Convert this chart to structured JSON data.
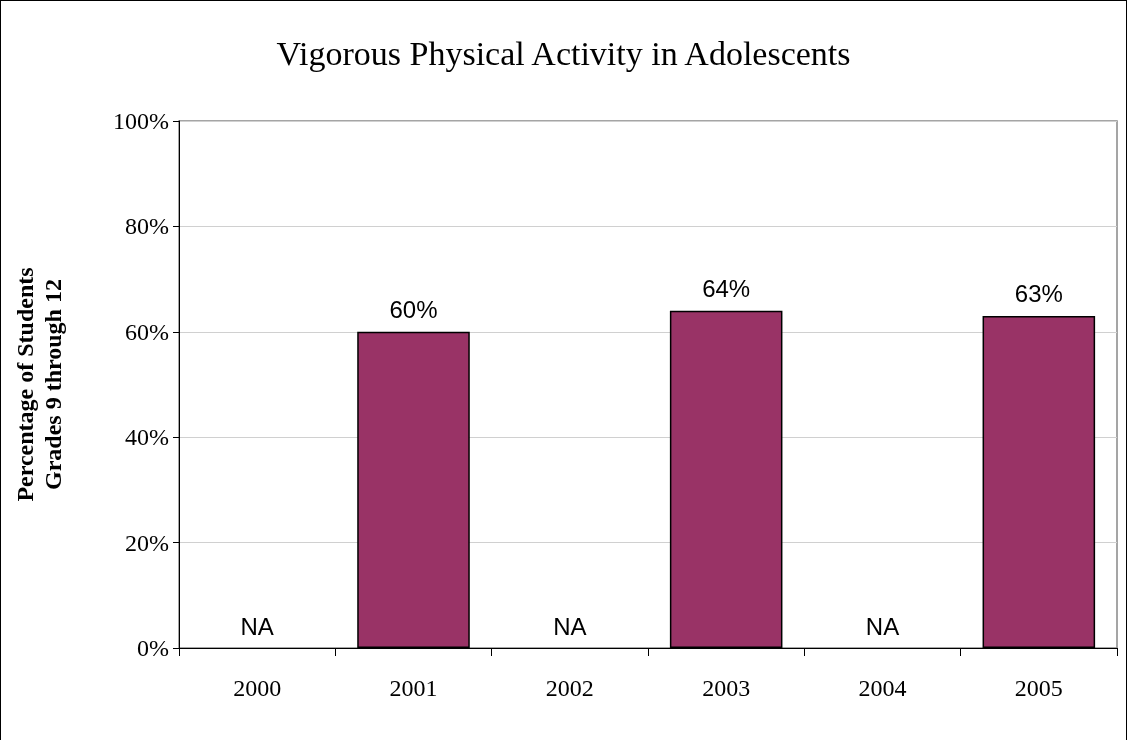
{
  "chart_data": {
    "type": "bar",
    "title": "Vigorous Physical Activity in Adolescents",
    "ylabel": "Percentage of Students\nGrades 9 through 12",
    "categories": [
      "2000",
      "2001",
      "2002",
      "2003",
      "2004",
      "2005"
    ],
    "values": [
      null,
      60,
      null,
      64,
      null,
      63
    ],
    "value_labels": [
      "NA",
      "60%",
      "NA",
      "64%",
      "NA",
      "63%"
    ],
    "color": "#993366",
    "ylim": [
      0,
      100
    ],
    "yticks": [
      {
        "value": 0,
        "label": "0%"
      },
      {
        "value": 20,
        "label": "20%"
      },
      {
        "value": 40,
        "label": "40%"
      },
      {
        "value": 60,
        "label": "60%"
      },
      {
        "value": 80,
        "label": "80%"
      },
      {
        "value": 100,
        "label": "100%"
      }
    ],
    "grid": "y"
  }
}
